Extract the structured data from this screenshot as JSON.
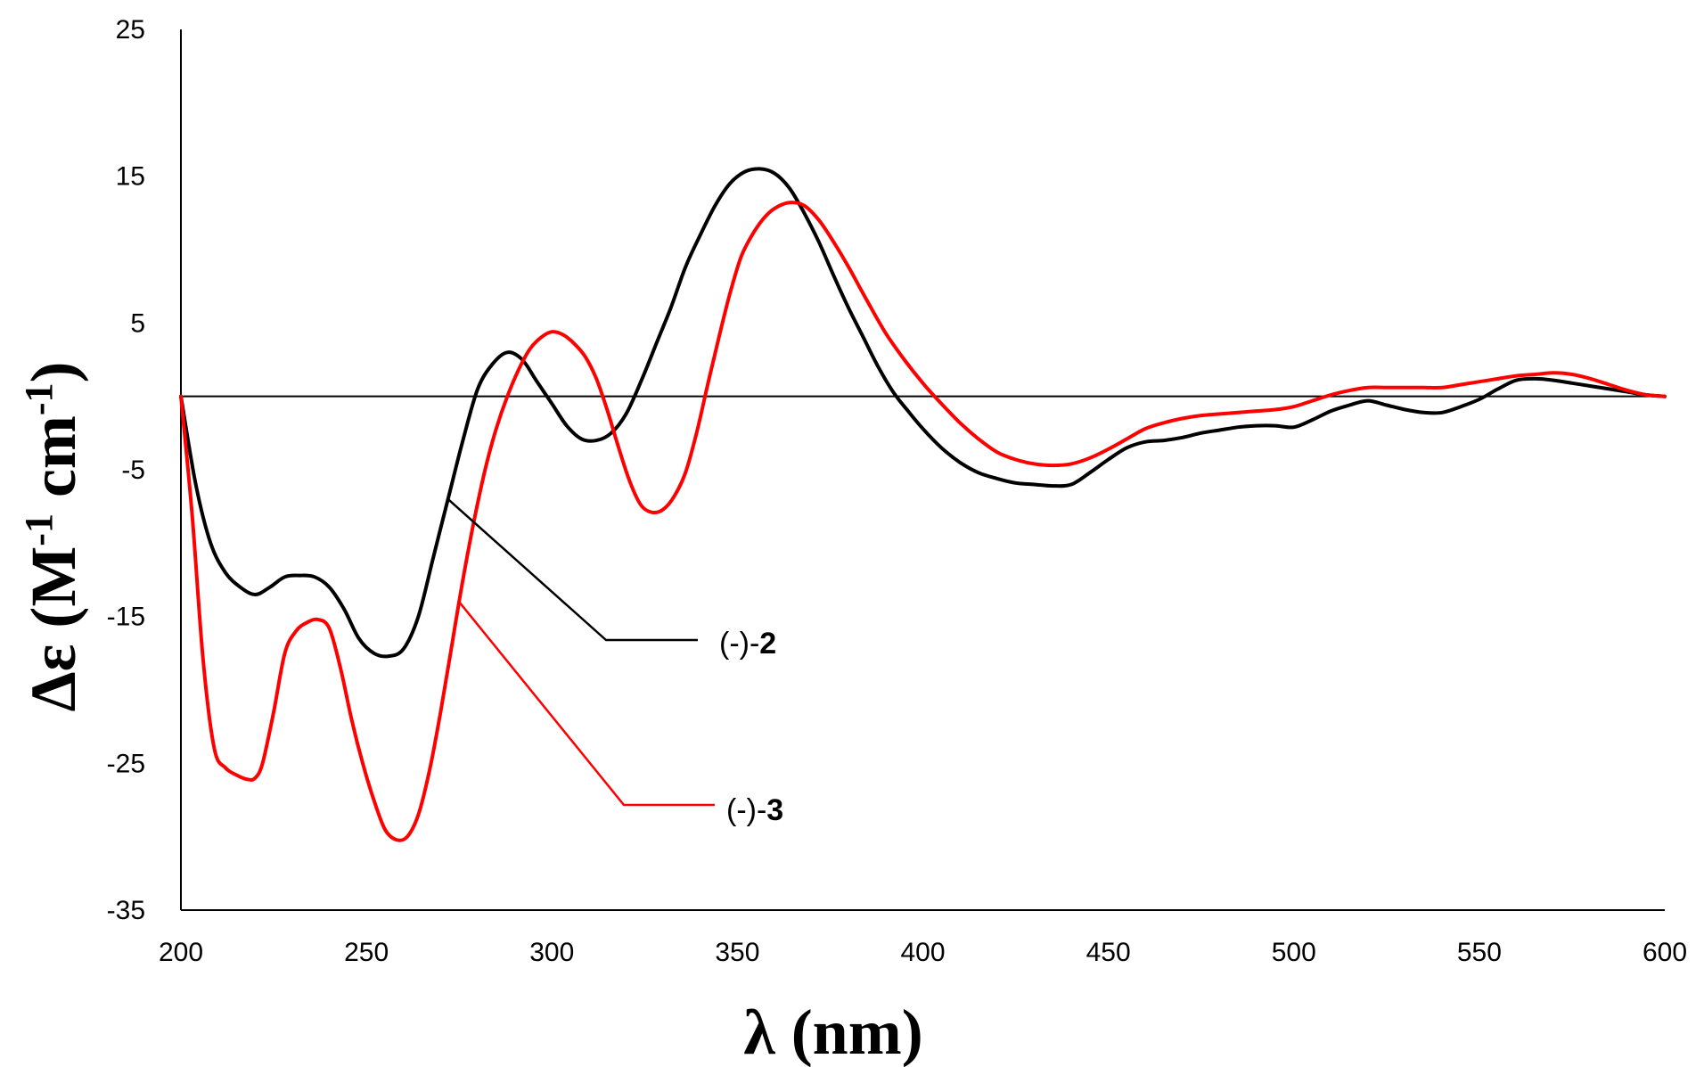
{
  "chart_data": {
    "type": "line",
    "title": "",
    "xlabel": "λ (nm)",
    "ylabel": "Δε (M⁻¹ cm⁻¹)",
    "ylabel_parts": {
      "prefix": "Δε (M",
      "sup1": "-1",
      "mid": " cm",
      "sup2": "-1",
      "suffix": ")"
    },
    "xlim": [
      200,
      600
    ],
    "ylim": [
      -35,
      25
    ],
    "xticks": [
      "200",
      "250",
      "300",
      "350",
      "400",
      "450",
      "500",
      "550",
      "600"
    ],
    "yticks": [
      "25",
      "15",
      "5",
      "-5",
      "-15",
      "-25",
      "-35"
    ],
    "zero_line": true,
    "series": [
      {
        "name": "(-)-2",
        "label_prefix": "(-)-",
        "label_number": "2",
        "color": "#000000",
        "x": [
          200,
          204,
          208,
          212,
          216,
          220,
          224,
          228,
          232,
          236,
          240,
          244,
          248,
          252,
          256,
          260,
          264,
          268,
          272,
          276,
          280,
          284,
          288,
          292,
          296,
          300,
          304,
          308,
          312,
          316,
          320,
          324,
          328,
          332,
          336,
          340,
          344,
          348,
          352,
          356,
          360,
          364,
          368,
          372,
          376,
          380,
          384,
          388,
          392,
          396,
          400,
          405,
          410,
          415,
          420,
          425,
          430,
          435,
          440,
          445,
          450,
          455,
          460,
          465,
          470,
          475,
          480,
          485,
          490,
          495,
          500,
          505,
          510,
          515,
          520,
          525,
          530,
          535,
          540,
          545,
          550,
          555,
          560,
          565,
          570,
          575,
          580,
          585,
          590,
          595,
          600
        ],
        "y": [
          0,
          -6,
          -10,
          -12,
          -13,
          -13.5,
          -13,
          -12.3,
          -12.2,
          -12.3,
          -13,
          -14.5,
          -16.5,
          -17.5,
          -17.7,
          -17.2,
          -15,
          -11,
          -7,
          -3,
          0.5,
          2.2,
          3,
          2.5,
          1,
          -0.5,
          -2,
          -2.9,
          -3.0,
          -2.5,
          -1.2,
          1,
          3.5,
          6,
          8.8,
          11,
          13,
          14.5,
          15.3,
          15.5,
          15.2,
          14.2,
          12.5,
          10.5,
          8.2,
          6,
          4,
          2,
          0.3,
          -1,
          -2.2,
          -3.5,
          -4.5,
          -5.2,
          -5.6,
          -5.9,
          -6.0,
          -6.1,
          -6.0,
          -5.2,
          -4.3,
          -3.5,
          -3.1,
          -3.0,
          -2.8,
          -2.5,
          -2.3,
          -2.1,
          -2.0,
          -2.0,
          -2.1,
          -1.6,
          -1.0,
          -0.6,
          -0.3,
          -0.6,
          -0.9,
          -1.1,
          -1.1,
          -0.7,
          -0.2,
          0.5,
          1.1,
          1.2,
          1.1,
          0.9,
          0.7,
          0.5,
          0.3,
          0.1,
          0
        ]
      },
      {
        "name": "(-)-3",
        "label_prefix": "(-)-",
        "label_number": "3",
        "color": "#ff0000",
        "x": [
          200,
          203,
          206,
          209,
          212,
          215,
          218,
          220,
          222,
          225,
          228,
          231,
          234,
          237,
          240,
          243,
          246,
          249,
          252,
          255,
          258,
          261,
          264,
          267,
          270,
          273,
          276,
          279,
          282,
          285,
          288,
          291,
          294,
          297,
          300,
          303,
          306,
          309,
          312,
          315,
          318,
          321,
          324,
          327,
          330,
          333,
          336,
          339,
          342,
          345,
          348,
          351,
          354,
          357,
          360,
          364,
          368,
          372,
          376,
          380,
          385,
          390,
          395,
          400,
          405,
          410,
          415,
          420,
          425,
          430,
          435,
          440,
          445,
          450,
          455,
          460,
          465,
          470,
          475,
          480,
          485,
          490,
          495,
          500,
          505,
          510,
          515,
          520,
          525,
          530,
          535,
          540,
          545,
          550,
          555,
          560,
          565,
          570,
          575,
          580,
          585,
          590,
          595,
          600
        ],
        "y": [
          0,
          -8,
          -18,
          -24,
          -25.3,
          -25.8,
          -26.1,
          -26.0,
          -25,
          -21.5,
          -17.5,
          -16.0,
          -15.4,
          -15.2,
          -15.8,
          -18.5,
          -22,
          -25,
          -27.5,
          -29.5,
          -30.2,
          -30.0,
          -28.5,
          -25.5,
          -21.5,
          -17,
          -12.5,
          -8.5,
          -5,
          -2.2,
          0,
          1.8,
          3.2,
          4.0,
          4.4,
          4.2,
          3.6,
          2.7,
          1.2,
          -1,
          -3.5,
          -5.8,
          -7.4,
          -7.9,
          -7.7,
          -6.8,
          -5.2,
          -2.5,
          0.8,
          4,
          7,
          9.5,
          11,
          12.1,
          12.8,
          13.2,
          13,
          12,
          10.5,
          8.8,
          6.5,
          4.3,
          2.5,
          0.9,
          -0.5,
          -1.8,
          -2.9,
          -3.8,
          -4.3,
          -4.6,
          -4.7,
          -4.6,
          -4.2,
          -3.6,
          -2.9,
          -2.2,
          -1.8,
          -1.5,
          -1.3,
          -1.2,
          -1.1,
          -1.0,
          -0.9,
          -0.7,
          -0.3,
          0.1,
          0.4,
          0.6,
          0.6,
          0.6,
          0.6,
          0.6,
          0.8,
          1.0,
          1.2,
          1.4,
          1.5,
          1.6,
          1.5,
          1.2,
          0.8,
          0.4,
          0.1,
          0
        ]
      }
    ]
  }
}
